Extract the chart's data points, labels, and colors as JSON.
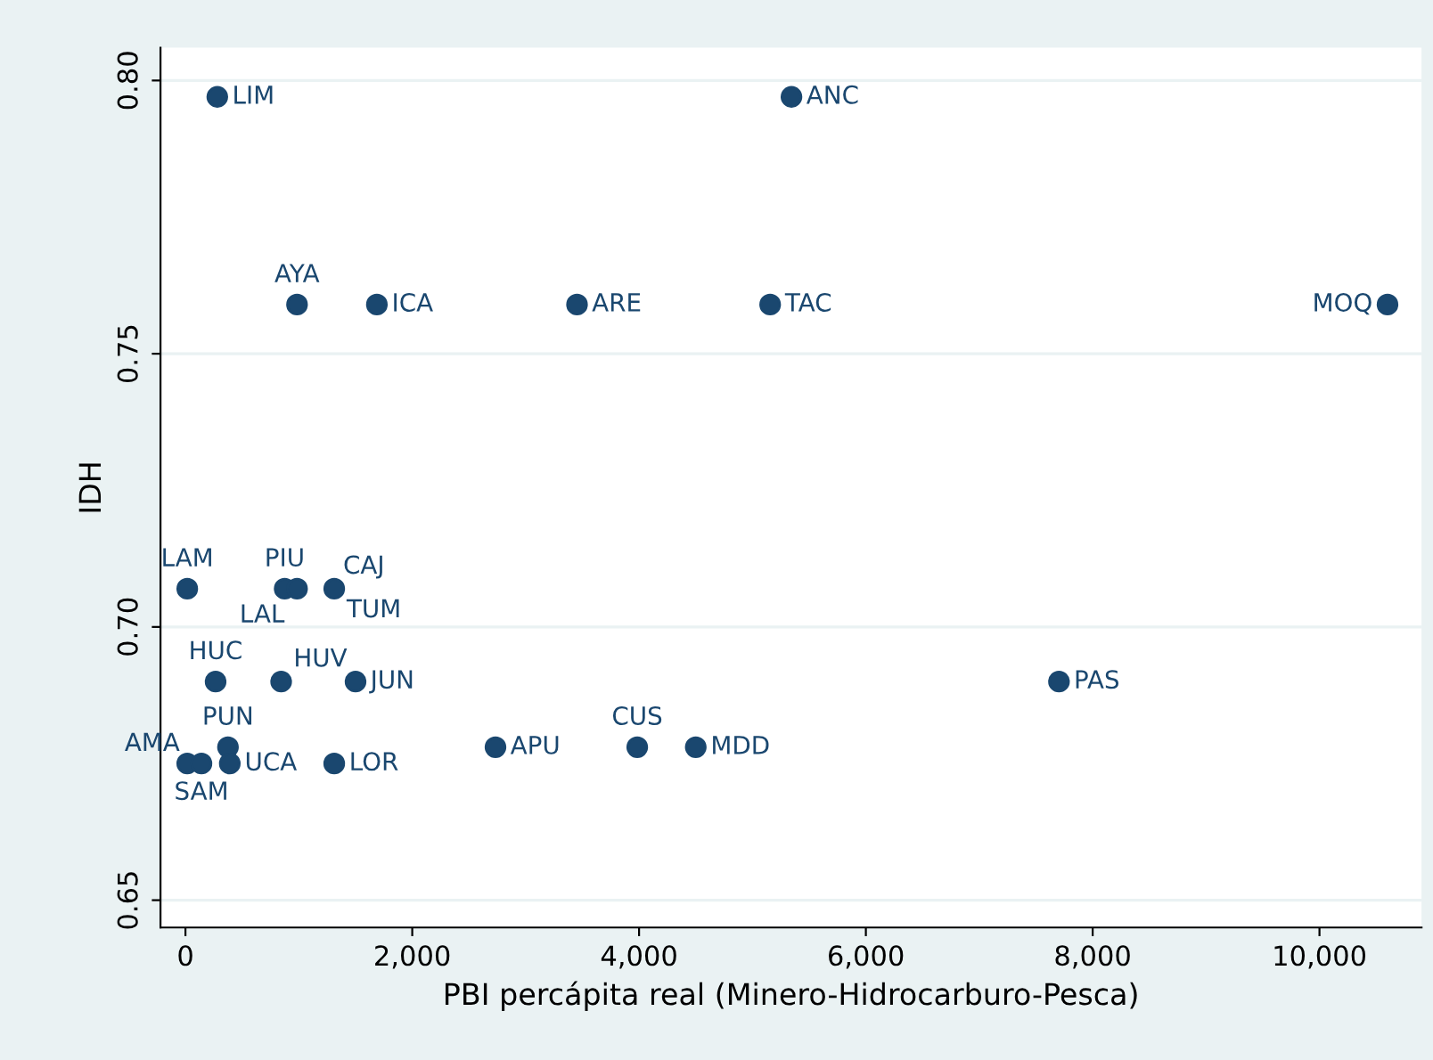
{
  "chart_data": {
    "type": "scatter",
    "xlabel": "PBI percápita real (Minero-Hidrocarburo-Pesca)",
    "ylabel": "IDH",
    "x": [
      281,
      5344,
      984,
      1688,
      3453,
      5156,
      10600,
      16,
      875,
      984,
      1281,
      1312,
      266,
      844,
      1500,
      7703,
      375,
      2734,
      3984,
      4500,
      16,
      141,
      391,
      1312
    ],
    "series": [
      {
        "color": "#1a476f",
        "values": [
          0.797,
          0.797,
          0.759,
          0.759,
          0.759,
          0.759,
          0.759,
          0.707,
          0.707,
          0.707,
          null,
          0.707,
          0.69,
          0.69,
          0.69,
          0.69,
          0.678,
          0.678,
          0.678,
          0.678,
          0.675,
          0.675,
          0.675,
          0.675
        ]
      }
    ],
    "annotations": [
      {
        "text": "LIM",
        "x": 281,
        "y": 0.797
      },
      {
        "text": "ANC",
        "x": 5344,
        "y": 0.797
      },
      {
        "text": "AYA",
        "x": 984,
        "y": 0.759
      },
      {
        "text": "ICA",
        "x": 1688,
        "y": 0.759
      },
      {
        "text": "ARE",
        "x": 3453,
        "y": 0.759
      },
      {
        "text": "TAC",
        "x": 5156,
        "y": 0.759
      },
      {
        "text": "MOQ",
        "x": 10600,
        "y": 0.759
      },
      {
        "text": "LAM",
        "x": 16,
        "y": 0.707
      },
      {
        "text": "PIU",
        "x": 875,
        "y": 0.707
      },
      {
        "text": "LAL",
        "x": 984,
        "y": 0.707
      },
      {
        "text": "CAJ",
        "x": 1281,
        "y": 0.707
      },
      {
        "text": "TUM",
        "x": 1312,
        "y": 0.707
      },
      {
        "text": "HUC",
        "x": 266,
        "y": 0.69
      },
      {
        "text": "HUV",
        "x": 844,
        "y": 0.69
      },
      {
        "text": "JUN",
        "x": 1500,
        "y": 0.69
      },
      {
        "text": "PAS",
        "x": 7703,
        "y": 0.69
      },
      {
        "text": "PUN",
        "x": 375,
        "y": 0.678
      },
      {
        "text": "APU",
        "x": 2734,
        "y": 0.678
      },
      {
        "text": "CUS",
        "x": 3984,
        "y": 0.678
      },
      {
        "text": "MDD",
        "x": 4500,
        "y": 0.678
      },
      {
        "text": "AMA",
        "x": 16,
        "y": 0.675
      },
      {
        "text": "SAM",
        "x": 141,
        "y": 0.675
      },
      {
        "text": "UCA",
        "x": 391,
        "y": 0.675
      },
      {
        "text": "LOR",
        "x": 1312,
        "y": 0.675
      }
    ],
    "xlim": [
      -220,
      10900
    ],
    "ylim": [
      0.645,
      0.806
    ],
    "xticks": [
      0,
      {
        "value": 2000,
        "label": "2,000"
      },
      {
        "value": 4000,
        "label": "4,000"
      },
      {
        "value": 6000,
        "label": "6,000"
      },
      {
        "value": 8000,
        "label": "8,000"
      },
      {
        "value": 10000,
        "label": "10,000"
      }
    ],
    "yticks": [
      {
        "value": 0.65,
        "label": "0.65"
      },
      {
        "value": 0.7,
        "label": "0.70"
      },
      {
        "value": 0.75,
        "label": "0.75"
      },
      {
        "value": 0.8,
        "label": "0.80"
      }
    ],
    "grid": "y",
    "marker": "circle"
  }
}
